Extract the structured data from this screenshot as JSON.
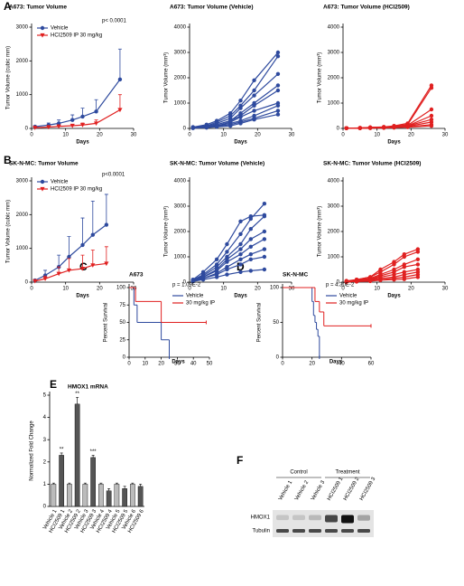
{
  "panel_labels": [
    "A",
    "B",
    "C",
    "D",
    "E",
    "F"
  ],
  "chart_data": [
    {
      "type": "line",
      "title": "A673: Tumor Volume",
      "y_label": "Tumor Volume (cubic mm)",
      "x_label": "Days",
      "annotation": "p< 0.0001",
      "legend": true,
      "x": [
        1,
        5,
        8,
        12,
        15,
        19,
        26
      ],
      "xlim": [
        0,
        30
      ],
      "xticks": [
        0,
        10,
        20,
        30
      ],
      "ylim": [
        0,
        3000
      ],
      "yticks": [
        0,
        1000,
        2000,
        3000
      ],
      "series": [
        {
          "name": "Vehicle",
          "color": "#2e4a9e",
          "marker": "circle",
          "values": [
            50,
            100,
            150,
            250,
            350,
            500,
            1450
          ],
          "errors": [
            30,
            60,
            100,
            150,
            250,
            350,
            900
          ]
        },
        {
          "name": "HCI2509 IP 30 mg/kg",
          "color": "#e02020",
          "marker": "triangle-down",
          "values": [
            20,
            40,
            60,
            80,
            100,
            150,
            550
          ],
          "errors": [
            10,
            20,
            30,
            40,
            60,
            100,
            450
          ]
        }
      ]
    },
    {
      "type": "line",
      "title": "A673: Tumor Volume (Vehicle)",
      "y_label": "Tumor Volume (mm³)",
      "x_label": "Days",
      "x": [
        1,
        5,
        8,
        12,
        15,
        19,
        26
      ],
      "xlim": [
        0,
        30
      ],
      "xticks": [
        0,
        10,
        20,
        30
      ],
      "ylim": [
        0,
        4000
      ],
      "yticks": [
        0,
        1000,
        2000,
        3000,
        4000
      ],
      "series": [
        {
          "color": "#2e4a9e",
          "values": [
            50,
            150,
            300,
            600,
            1100,
            1900,
            3000
          ]
        },
        {
          "color": "#2e4a9e",
          "values": [
            50,
            100,
            250,
            500,
            900,
            1500,
            2850
          ]
        },
        {
          "color": "#2e4a9e",
          "values": [
            30,
            80,
            200,
            400,
            800,
            1300,
            2150
          ]
        },
        {
          "color": "#2e4a9e",
          "values": [
            30,
            60,
            150,
            300,
            600,
            1000,
            1700
          ]
        },
        {
          "color": "#2e4a9e",
          "values": [
            30,
            60,
            150,
            300,
            500,
            900,
            1500
          ]
        },
        {
          "color": "#2e4a9e",
          "values": [
            20,
            50,
            100,
            250,
            450,
            700,
            1000
          ]
        },
        {
          "color": "#2e4a9e",
          "values": [
            20,
            40,
            100,
            200,
            300,
            500,
            900
          ]
        },
        {
          "color": "#2e4a9e",
          "values": [
            20,
            40,
            80,
            150,
            250,
            400,
            700
          ]
        },
        {
          "color": "#2e4a9e",
          "values": [
            10,
            30,
            60,
            100,
            200,
            350,
            550
          ]
        }
      ]
    },
    {
      "type": "line",
      "title": "A673: Tumor Volume (HCI2509)",
      "y_label": "Tumor Volume (mm³)",
      "x_label": "Days",
      "x": [
        1,
        5,
        8,
        12,
        15,
        19,
        26
      ],
      "xlim": [
        0,
        30
      ],
      "xticks": [
        0,
        10,
        20,
        30
      ],
      "ylim": [
        0,
        4000
      ],
      "yticks": [
        0,
        1000,
        2000,
        3000,
        4000
      ],
      "series": [
        {
          "color": "#e02020",
          "values": [
            10,
            20,
            40,
            60,
            100,
            200,
            1700
          ]
        },
        {
          "color": "#e02020",
          "values": [
            10,
            20,
            40,
            50,
            80,
            150,
            1600
          ]
        },
        {
          "color": "#e02020",
          "values": [
            10,
            20,
            30,
            50,
            80,
            120,
            750
          ]
        },
        {
          "color": "#e02020",
          "values": [
            10,
            10,
            30,
            40,
            60,
            100,
            500
          ]
        },
        {
          "color": "#e02020",
          "values": [
            10,
            10,
            20,
            40,
            60,
            100,
            350
          ]
        },
        {
          "color": "#e02020",
          "values": [
            10,
            10,
            20,
            30,
            50,
            80,
            250
          ]
        },
        {
          "color": "#e02020",
          "values": [
            10,
            10,
            20,
            30,
            40,
            60,
            150
          ]
        },
        {
          "color": "#e02020",
          "values": [
            10,
            10,
            10,
            20,
            30,
            50,
            100
          ]
        }
      ]
    },
    {
      "type": "line",
      "title": "SK-N-MC: Tumor Volume",
      "y_label": "Tumor Volume (cubic mm)",
      "x_label": "Days",
      "annotation": "p<0.0001",
      "legend": true,
      "x": [
        1,
        4,
        8,
        11,
        15,
        18,
        22
      ],
      "xlim": [
        0,
        30
      ],
      "xticks": [
        0,
        10,
        20,
        30
      ],
      "ylim": [
        0,
        3000
      ],
      "yticks": [
        0,
        1000,
        2000,
        3000
      ],
      "series": [
        {
          "name": "Vehicle",
          "color": "#2e4a9e",
          "marker": "circle",
          "values": [
            50,
            200,
            450,
            750,
            1100,
            1400,
            1700
          ],
          "errors": [
            30,
            150,
            350,
            600,
            800,
            1000,
            900
          ]
        },
        {
          "name": "HCI2509 IP 30 mg/kg",
          "color": "#e02020",
          "marker": "triangle-down",
          "values": [
            30,
            100,
            250,
            350,
            400,
            500,
            550
          ],
          "errors": [
            20,
            80,
            200,
            350,
            400,
            450,
            500
          ]
        }
      ]
    },
    {
      "type": "line",
      "title": "SK-N-MC: Tumor Volume (Vehicle)",
      "y_label": "Tumor Volume (mm³)",
      "x_label": "Days",
      "x": [
        1,
        4,
        8,
        11,
        15,
        18,
        22
      ],
      "xlim": [
        0,
        30
      ],
      "xticks": [
        0,
        10,
        20,
        30
      ],
      "ylim": [
        0,
        4000
      ],
      "yticks": [
        0,
        1000,
        2000,
        3000,
        4000
      ],
      "series": [
        {
          "color": "#2e4a9e",
          "values": [
            100,
            400,
            900,
            1500,
            2400,
            2600,
            2650
          ]
        },
        {
          "color": "#2e4a9e",
          "values": [
            80,
            300,
            700,
            1200,
            1900,
            2500,
            3100
          ]
        },
        {
          "color": "#2e4a9e",
          "values": [
            60,
            250,
            600,
            1000,
            1500,
            2100,
            2600
          ]
        },
        {
          "color": "#2e4a9e",
          "values": [
            50,
            200,
            500,
            900,
            1300,
            1700,
            2000
          ]
        },
        {
          "color": "#2e4a9e",
          "values": [
            50,
            200,
            450,
            800,
            1100,
            1400,
            1700
          ]
        },
        {
          "color": "#2e4a9e",
          "values": [
            40,
            150,
            350,
            600,
            900,
            1100,
            1300
          ]
        },
        {
          "color": "#2e4a9e",
          "values": [
            40,
            150,
            300,
            500,
            700,
            900,
            1000
          ]
        },
        {
          "color": "#2e4a9e",
          "values": [
            30,
            100,
            200,
            300,
            400,
            450,
            500
          ]
        }
      ]
    },
    {
      "type": "line",
      "title": "SK-N-MC: Tumor Volume (HCI2509)",
      "y_label": "Tumor Volume (mm³)",
      "x_label": "Days",
      "x": [
        1,
        4,
        8,
        11,
        15,
        18,
        22
      ],
      "xlim": [
        0,
        30
      ],
      "xticks": [
        0,
        10,
        20,
        30
      ],
      "ylim": [
        0,
        4000
      ],
      "yticks": [
        0,
        1000,
        2000,
        3000,
        4000
      ],
      "series": [
        {
          "color": "#e02020",
          "values": [
            50,
            100,
            200,
            500,
            800,
            1100,
            1300
          ]
        },
        {
          "color": "#e02020",
          "values": [
            30,
            100,
            200,
            400,
            700,
            1000,
            1200
          ]
        },
        {
          "color": "#e02020",
          "values": [
            30,
            80,
            150,
            300,
            500,
            700,
            900
          ]
        },
        {
          "color": "#e02020",
          "values": [
            20,
            60,
            120,
            250,
            400,
            600,
            700
          ]
        },
        {
          "color": "#e02020",
          "values": [
            20,
            50,
            100,
            200,
            300,
            400,
            500
          ]
        },
        {
          "color": "#e02020",
          "values": [
            10,
            40,
            80,
            150,
            200,
            300,
            400
          ]
        },
        {
          "color": "#e02020",
          "values": [
            10,
            30,
            60,
            100,
            150,
            200,
            300
          ]
        },
        {
          "color": "#e02020",
          "values": [
            10,
            20,
            40,
            80,
            100,
            120,
            200
          ]
        }
      ]
    },
    {
      "type": "step",
      "title": "A673",
      "y_label": "Percent Survival",
      "x_label": "Days",
      "annotation": "p = 1.09E-2",
      "legend": true,
      "xlim": [
        0,
        50
      ],
      "xticks": [
        0,
        10,
        20,
        30,
        40,
        50
      ],
      "ylim": [
        0,
        100
      ],
      "yticks": [
        0,
        25,
        50,
        75,
        100
      ],
      "series": [
        {
          "name": "Vehicle",
          "color": "#2e4a9e",
          "x": [
            0,
            3,
            5,
            20,
            25
          ],
          "values": [
            100,
            75,
            50,
            25,
            0
          ]
        },
        {
          "name": "30 mg/kg IP",
          "color": "#e02020",
          "x": [
            0,
            4,
            20,
            48
          ],
          "values": [
            100,
            80,
            50,
            50
          ]
        }
      ]
    },
    {
      "type": "step",
      "title": "SK-N-MC",
      "y_label": "Percent Survival",
      "x_label": "Days",
      "annotation": "p = 4.30E-2",
      "legend": true,
      "xlim": [
        0,
        60
      ],
      "xticks": [
        0,
        20,
        40,
        60
      ],
      "ylim": [
        0,
        100
      ],
      "yticks": [
        0,
        50,
        100
      ],
      "series": [
        {
          "name": "Vehicle",
          "color": "#2e4a9e",
          "x": [
            0,
            20,
            21,
            22,
            23,
            24,
            25
          ],
          "values": [
            100,
            80,
            60,
            50,
            40,
            30,
            0
          ]
        },
        {
          "name": "30 mg/kg IP",
          "color": "#e02020",
          "x": [
            0,
            22,
            25,
            28,
            60
          ],
          "values": [
            100,
            80,
            65,
            45,
            45
          ]
        }
      ]
    },
    {
      "type": "bar",
      "title": "HMOX1 mRNA",
      "y_label": "Normalized Fold Change",
      "categories": [
        "Vehicle 1",
        "HCI2509 1",
        "Vehicle 2",
        "HCI2509 2",
        "Vehicle 3",
        "HCI2509 3",
        "Vehicle 4",
        "HCI2509 4",
        "Vehicle 5",
        "HCI2509 5",
        "Vehicle 6",
        "HCI2509 6"
      ],
      "values": [
        1,
        2.3,
        1,
        4.6,
        1,
        2.2,
        1,
        0.7,
        1,
        0.8,
        1,
        0.9
      ],
      "errors": [
        0.05,
        0.1,
        0.05,
        0.3,
        0.05,
        0.1,
        0.05,
        0.1,
        0.05,
        0.1,
        0.05,
        0.1
      ],
      "colors": [
        "#bbbbbb",
        "#555555",
        "#bbbbbb",
        "#555555",
        "#bbbbbb",
        "#555555",
        "#bbbbbb",
        "#555555",
        "#bbbbbb",
        "#555555",
        "#bbbbbb",
        "#555555"
      ],
      "ylim": [
        0,
        5
      ],
      "yticks": [
        0,
        1,
        2,
        3,
        4,
        5
      ],
      "annotations": [
        {
          "text": "**",
          "category": "HCI2509 1"
        },
        {
          "text": "**",
          "category": "HCI2509 2"
        },
        {
          "text": "***",
          "category": "HCI2509 3"
        }
      ]
    }
  ],
  "blot": {
    "groups": [
      "Control",
      "Treatment"
    ],
    "lanes": [
      "Vehicle 1",
      "Vehicle 2",
      "Vehicle 3",
      "HCI2509 1",
      "HCI2509 2",
      "HCI2509 3"
    ],
    "rows": [
      "HMOX1",
      "Tubulin"
    ]
  }
}
